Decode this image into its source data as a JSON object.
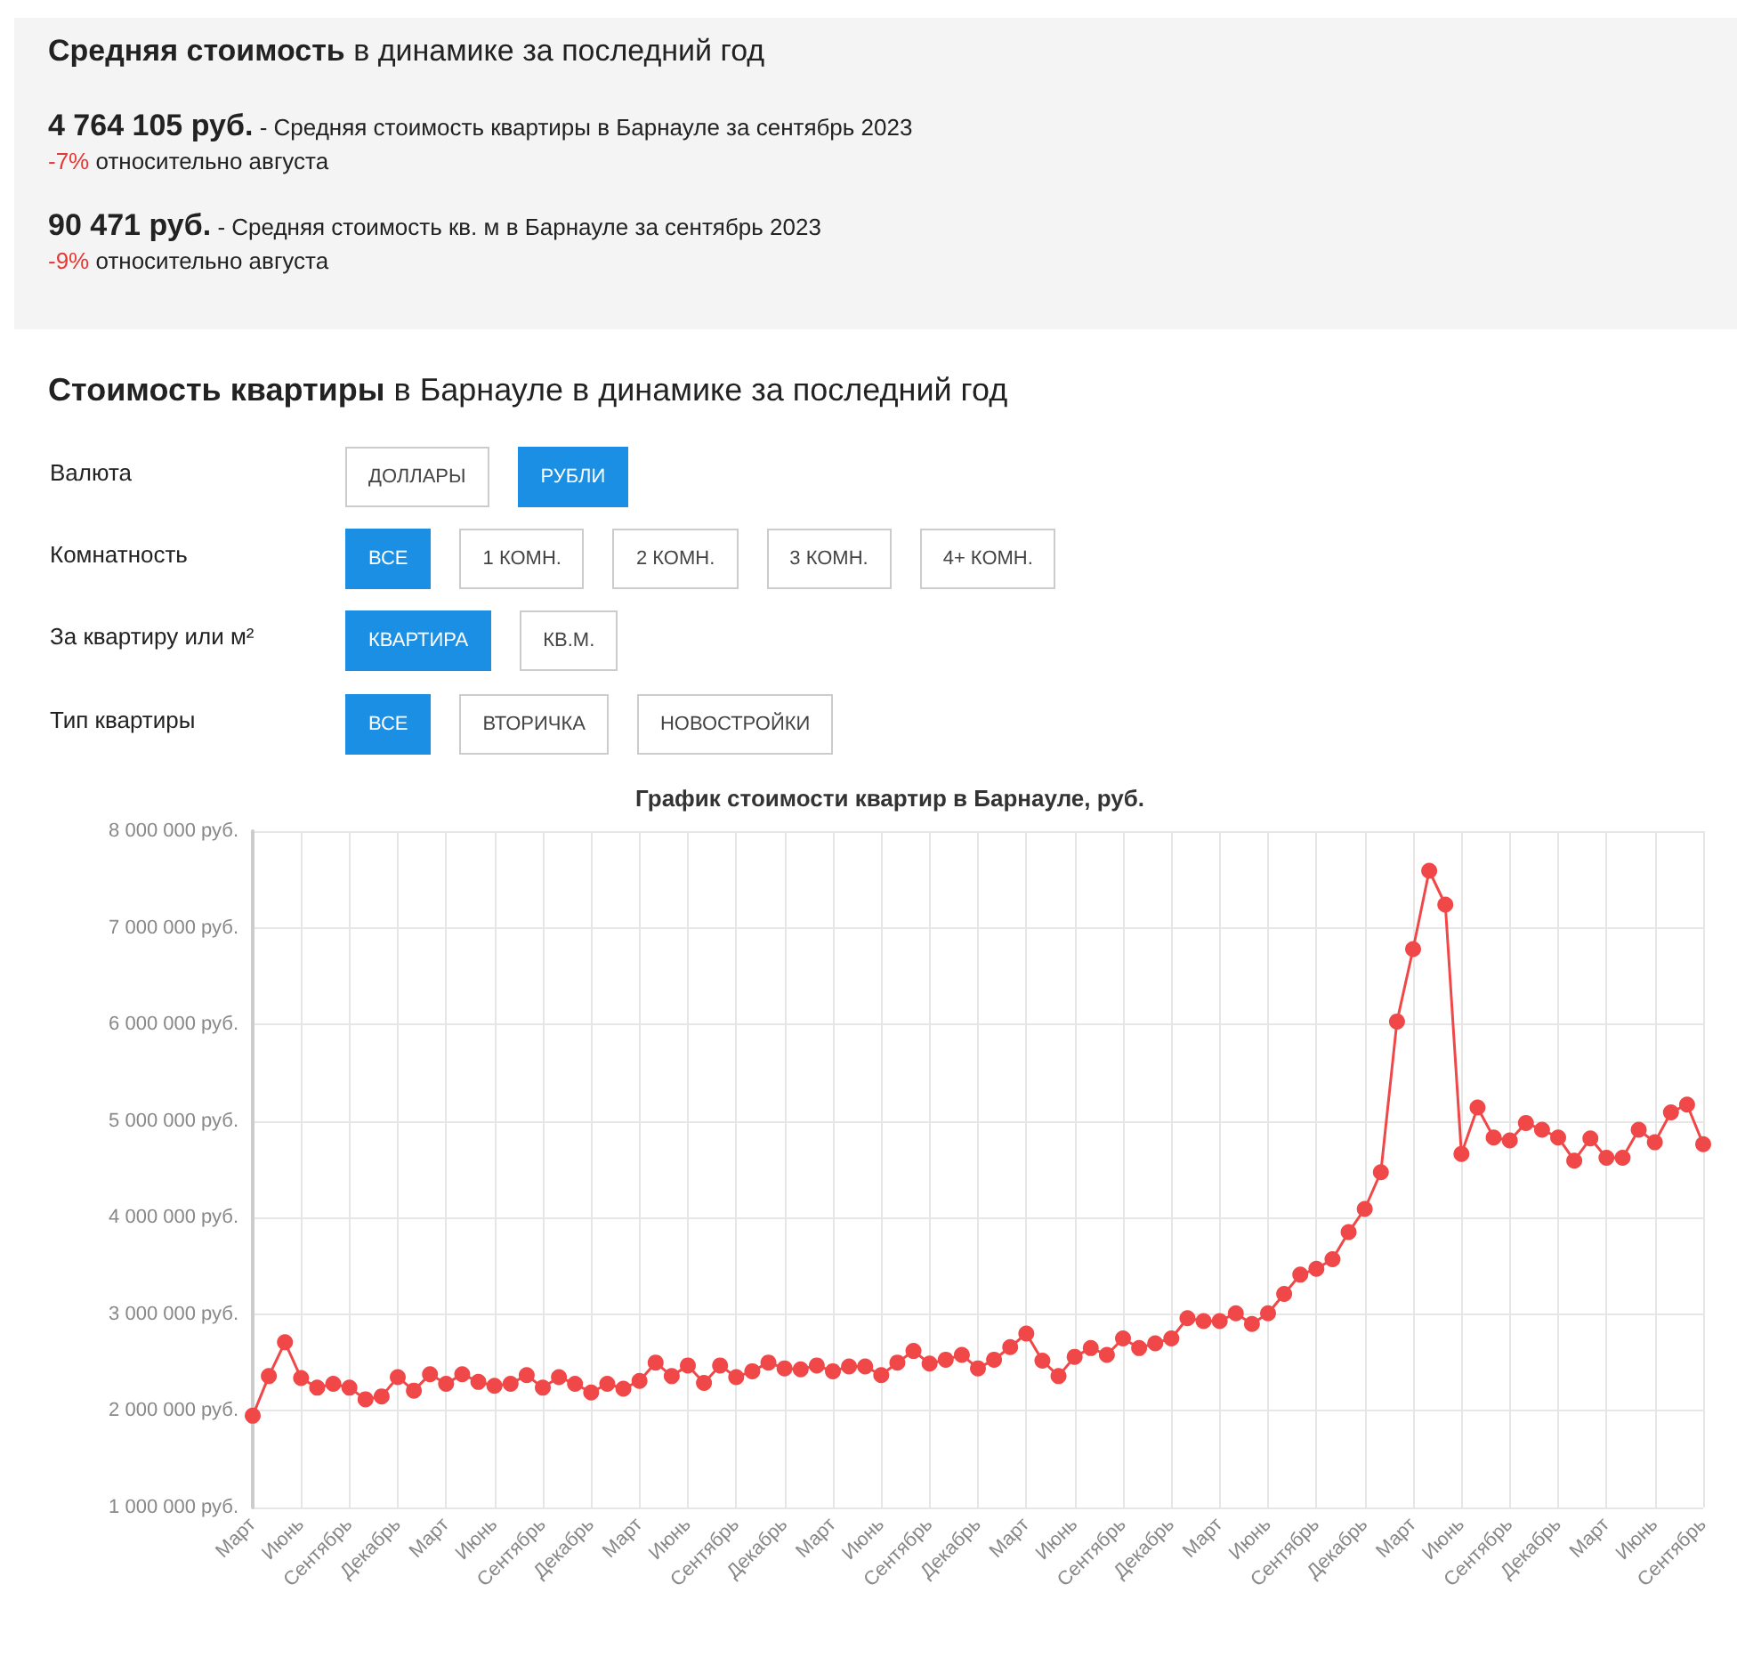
{
  "chart_data": {
    "type": "line",
    "title": "График стоимости квартир в Барнауле, руб.",
    "annotations": [
      "Средняя стоимость",
      "в динамике за последний год",
      "4 764 105 руб.",
      "- Средняя стоимость квартиры в Барнауле за сентябрь 2023",
      "-7%",
      "относительно августа",
      "90 471 руб.",
      "- Средняя стоимость кв. м в Барнауле за сентябрь 2023",
      "-9%",
      "относительно августа",
      "Стоимость квартиры",
      "в Барнауле в динамике за последний год",
      "Валюта",
      "ДОЛЛАРЫ",
      "РУБЛИ",
      "Комнатность",
      "ВСЕ",
      "1 КОМН.",
      "2 КОМН.",
      "3 КОМН.",
      "4+ КОМН.",
      "За квартиру или м²",
      "КВАРТИРА",
      "КВ.М.",
      "Тип квартиры",
      "ВСЕ",
      "ВТОРИЧКА",
      "НОВОСТРОЙКИ"
    ],
    "categories": [
      "Март",
      null,
      null,
      "Июнь",
      null,
      null,
      "Сентябрь",
      null,
      null,
      "Декабрь",
      null,
      null,
      "Март",
      null,
      null,
      "Июнь",
      null,
      null,
      "Сентябрь",
      null,
      null,
      "Декабрь",
      null,
      null,
      "Март",
      null,
      null,
      "Июнь",
      null,
      null,
      "Сентябрь",
      null,
      null,
      "Декабрь",
      null,
      null,
      "Март",
      null,
      null,
      "Июнь",
      null,
      null,
      "Сентябрь",
      null,
      null,
      "Декабрь",
      null,
      null,
      "Март",
      null,
      null,
      "Июнь",
      null,
      null,
      "Сентябрь",
      null,
      null,
      "Декабрь",
      null,
      null,
      "Март",
      null,
      null,
      "Июнь",
      null,
      null,
      "Сентябрь",
      null,
      null,
      "Декабрь",
      null,
      null,
      "Март",
      null,
      null,
      "Июнь",
      null,
      null,
      "Сентябрь",
      null,
      null,
      "Декабрь",
      null,
      null,
      "Март",
      null,
      null,
      "Июнь",
      null,
      null,
      "Сентябрь"
    ],
    "series": [
      {
        "color": "#f04848",
        "values": [
          1950000,
          2360000,
          2710000,
          2340000,
          2240000,
          2280000,
          2240000,
          2120000,
          2150000,
          2350000,
          2210000,
          2380000,
          2280000,
          2380000,
          2300000,
          2260000,
          2280000,
          2370000,
          2240000,
          2350000,
          2280000,
          2190000,
          2280000,
          2230000,
          2310000,
          2500000,
          2360000,
          2470000,
          2290000,
          2470000,
          2350000,
          2410000,
          2500000,
          2440000,
          2430000,
          2470000,
          2410000,
          2460000,
          2460000,
          2370000,
          2500000,
          2620000,
          2490000,
          2530000,
          2580000,
          2440000,
          2530000,
          2660000,
          2800000,
          2520000,
          2360000,
          2560000,
          2650000,
          2580000,
          2750000,
          2650000,
          2700000,
          2750000,
          2960000,
          2930000,
          2930000,
          3010000,
          2900000,
          3010000,
          3210000,
          3410000,
          3470000,
          3570000,
          3850000,
          4090000,
          4470000,
          6030000,
          6780000,
          7590000,
          7240000,
          4660000,
          5140000,
          4830000,
          4800000,
          4980000,
          4910000,
          4830000,
          4590000,
          4820000,
          4620000,
          4620000,
          4910000,
          4780000,
          5090000,
          5170000,
          4760000
        ]
      }
    ],
    "ylim": [
      1000000,
      8000000
    ],
    "yticks": [
      {
        "value": 1000000,
        "label": "1 000 000 руб."
      },
      {
        "value": 2000000,
        "label": "2 000 000 руб."
      },
      {
        "value": 3000000,
        "label": "3 000 000 руб."
      },
      {
        "value": 4000000,
        "label": "4 000 000 руб."
      },
      {
        "value": 5000000,
        "label": "5 000 000 руб."
      },
      {
        "value": 6000000,
        "label": "6 000 000 руб."
      },
      {
        "value": 7000000,
        "label": "7 000 000 руб."
      },
      {
        "value": 8000000,
        "label": "8 000 000 руб."
      }
    ],
    "grid": true,
    "marker": "circle"
  }
}
